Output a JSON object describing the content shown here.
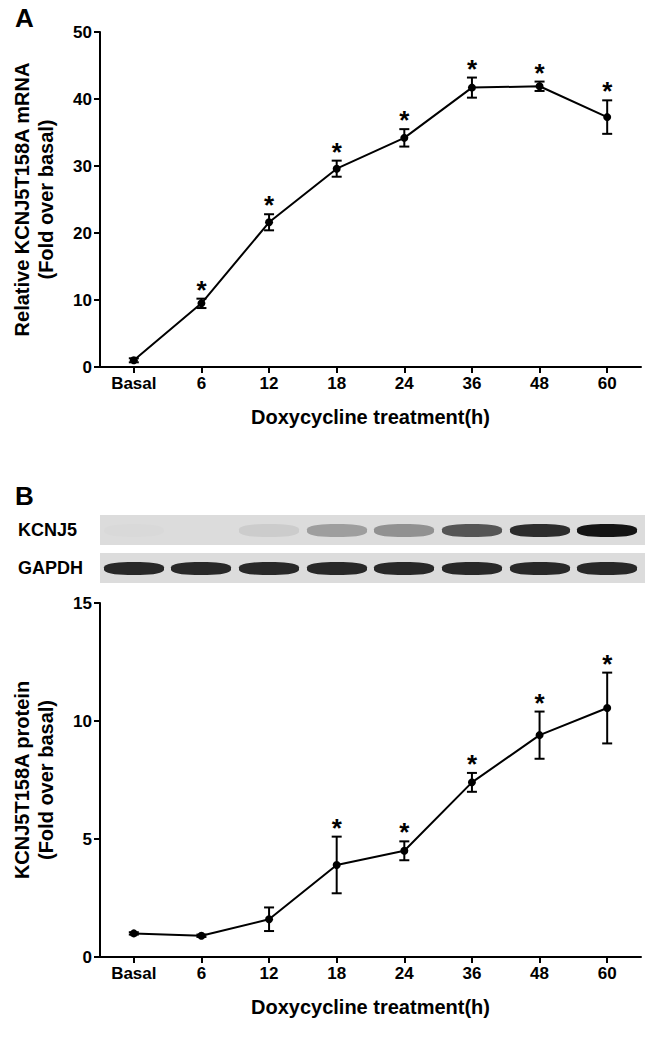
{
  "chart_data": [
    {
      "type": "line",
      "title": "A",
      "categories": [
        "Basal",
        "6",
        "12",
        "18",
        "24",
        "36",
        "48",
        "60"
      ],
      "values": [
        1,
        9.5,
        21.6,
        29.6,
        34.2,
        41.7,
        41.9,
        37.3
      ],
      "error": [
        0.3,
        0.7,
        1.2,
        1.2,
        1.3,
        1.5,
        0.7,
        2.5
      ],
      "annotations": [
        null,
        "*",
        "*",
        "*",
        "*",
        "*",
        "*",
        "*"
      ],
      "xlabel": "Doxycycline treatment(h)",
      "ylabel": "Relative KCNJ5T158A mRNA (Fold over basal)",
      "ylim": [
        0,
        50
      ],
      "yticks": [
        0,
        10,
        20,
        30,
        40,
        50
      ],
      "color": "#000000",
      "marker": "circle",
      "grid": false
    },
    {
      "type": "line",
      "title": "B",
      "blot": {
        "rows": [
          "KCNJ5",
          "GAPDH"
        ]
      },
      "categories": [
        "Basal",
        "6",
        "12",
        "18",
        "24",
        "36",
        "48",
        "60"
      ],
      "values": [
        1,
        0.9,
        1.6,
        3.9,
        4.5,
        7.4,
        9.4,
        10.55
      ],
      "error": [
        0.05,
        0.05,
        0.5,
        1.2,
        0.4,
        0.4,
        1.0,
        1.5
      ],
      "annotations": [
        null,
        null,
        null,
        "*",
        "*",
        "*",
        "*",
        "*"
      ],
      "xlabel": "Doxycycline treatment(h)",
      "ylabel": "KCNJ5T158A protein (Fold over basal)",
      "ylim": [
        0,
        15
      ],
      "yticks": [
        0,
        5,
        10,
        15
      ],
      "color": "#000000",
      "marker": "circle",
      "grid": false
    }
  ]
}
